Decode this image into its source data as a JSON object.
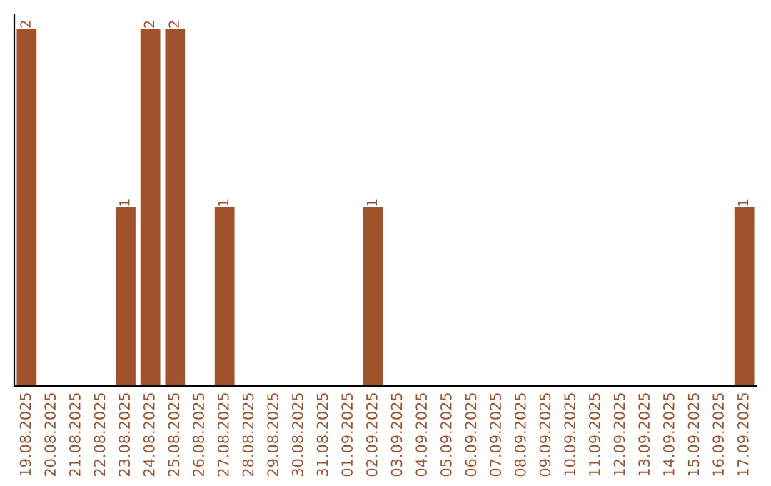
{
  "chart_data": {
    "type": "bar",
    "categories": [
      "19.08.2025",
      "20.08.2025",
      "21.08.2025",
      "22.08.2025",
      "23.08.2025",
      "24.08.2025",
      "25.08.2025",
      "26.08.2025",
      "27.08.2025",
      "28.08.2025",
      "29.08.2025",
      "30.08.2025",
      "31.08.2025",
      "01.09.2025",
      "02.09.2025",
      "03.09.2025",
      "04.09.2025",
      "05.09.2025",
      "06.09.2025",
      "07.09.2025",
      "08.09.2025",
      "09.09.2025",
      "10.09.2025",
      "11.09.2025",
      "12.09.2025",
      "13.09.2025",
      "14.09.2025",
      "15.09.2025",
      "16.09.2025",
      "17.09.2025"
    ],
    "values": [
      2,
      0,
      0,
      0,
      1,
      2,
      2,
      0,
      1,
      0,
      0,
      0,
      0,
      0,
      1,
      0,
      0,
      0,
      0,
      0,
      0,
      0,
      0,
      0,
      0,
      0,
      0,
      0,
      0,
      1
    ],
    "value_labels": [
      "2",
      null,
      null,
      null,
      "1",
      "2",
      "2",
      null,
      "1",
      null,
      null,
      null,
      null,
      null,
      "1",
      null,
      null,
      null,
      null,
      null,
      null,
      null,
      null,
      null,
      null,
      null,
      null,
      null,
      null,
      "1"
    ],
    "color": "#a0522d",
    "ylim": [
      0,
      2.08
    ],
    "tick_labels": "x",
    "grid": false,
    "legend": false
  }
}
